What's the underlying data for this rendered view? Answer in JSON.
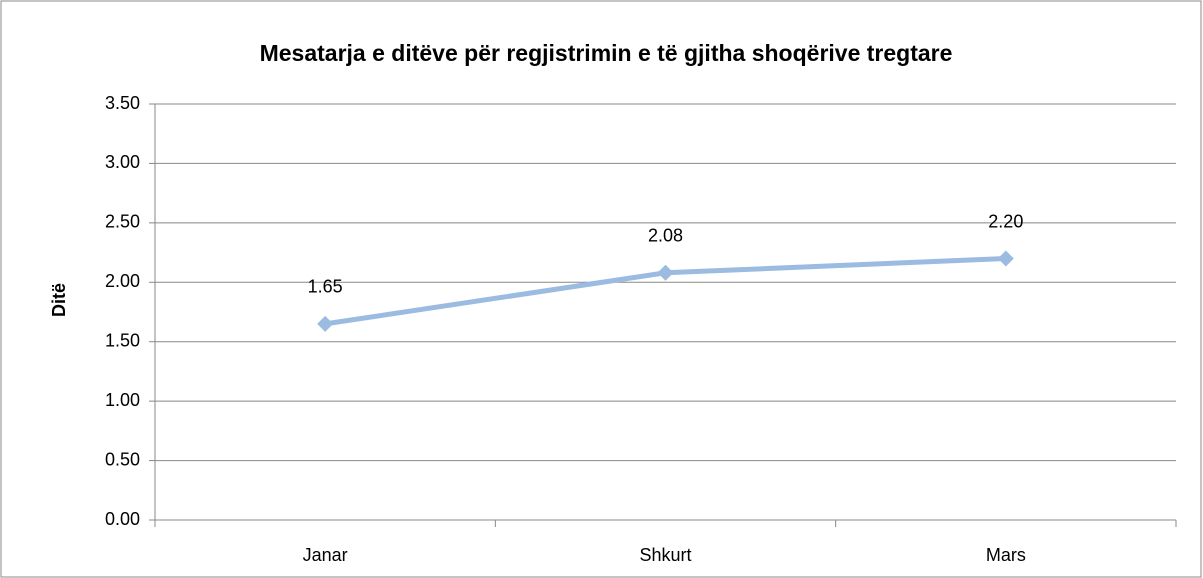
{
  "chart_data": {
    "type": "line",
    "title": "Mesatarja e ditëve për regjistrimin e të gjitha shoqërive tregtare",
    "y_label": "Ditë",
    "categories": [
      "Janar",
      "Shkurt",
      "Mars"
    ],
    "series": [
      {
        "name": "Ditë",
        "color": "#9bbbe0",
        "values": [
          1.65,
          2.08,
          2.2
        ],
        "value_labels": [
          "1.65",
          "2.08",
          "2.20"
        ]
      }
    ],
    "ylim": [
      0,
      3.5
    ],
    "yticks": [
      {
        "value": 0,
        "label": "0.00"
      },
      {
        "value": 0.5,
        "label": "0.50"
      },
      {
        "value": 1,
        "label": "1.00"
      },
      {
        "value": 1.5,
        "label": "1.50"
      },
      {
        "value": 2,
        "label": "2.00"
      },
      {
        "value": 2.5,
        "label": "2.50"
      },
      {
        "value": 3,
        "label": "3.00"
      },
      {
        "value": 3.5,
        "label": "3.50"
      }
    ],
    "grid": true
  }
}
